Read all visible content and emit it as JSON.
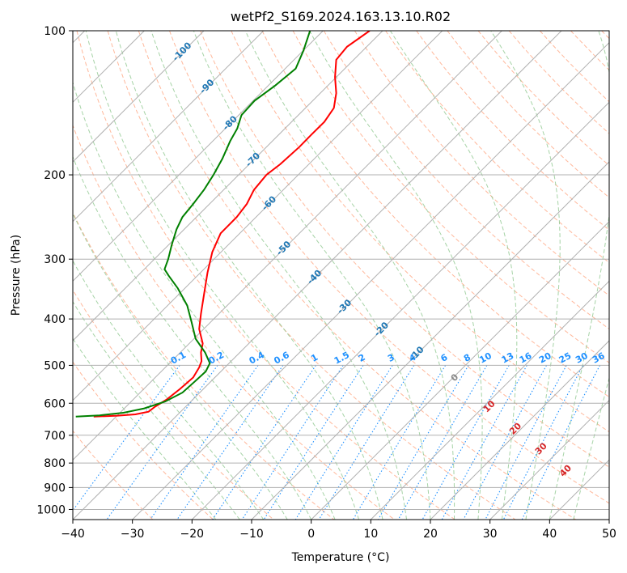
{
  "chart_data": {
    "type": "line",
    "title": "wetPf2_S169.2024.163.13.10.R02",
    "xlabel": "Temperature (°C)",
    "ylabel": "Pressure (hPa)",
    "xlim": [
      -40,
      50
    ],
    "ylim": [
      1050,
      100
    ],
    "y_scale": "log",
    "grid": true,
    "x_ticks": [
      -40,
      -30,
      -20,
      -10,
      0,
      10,
      20,
      30,
      40,
      50
    ],
    "y_ticks": [
      100,
      200,
      300,
      400,
      500,
      600,
      700,
      800,
      900,
      1000
    ],
    "skew": "temperature lines slanted 45°",
    "colors": {
      "temperature": "#ff0000",
      "dewpoint": "#008000",
      "isotherm_label": "#1f77b4",
      "mixing_ratio": "#1e90ff",
      "dry_adiabat": "#ffa07a",
      "moist_adiabat": "#90c890",
      "wet_bulb_label": "#d62728",
      "grid": "#b0b0b0"
    },
    "isotherm_labels": [
      -100,
      -90,
      -80,
      -70,
      -60,
      -50,
      -40,
      -30,
      -20,
      -10
    ],
    "mixing_ratio_labels": [
      "0.1",
      "0.2",
      "0.4",
      "0.6",
      "1",
      "1.5",
      "2",
      "3",
      "4",
      "6",
      "8",
      "10",
      "13",
      "16",
      "20",
      "25",
      "30",
      "36"
    ],
    "wet_bulb_labels": [
      "0",
      "10",
      "20",
      "30",
      "40"
    ],
    "series": [
      {
        "type": "temperature",
        "color": "#ff0000",
        "points": [
          {
            "t": 9.8,
            "p": 100
          },
          {
            "t": 6.0,
            "p": 108
          },
          {
            "t": 4.2,
            "p": 115
          },
          {
            "t": 4.0,
            "p": 125
          },
          {
            "t": 4.2,
            "p": 135
          },
          {
            "t": 3.8,
            "p": 145
          },
          {
            "t": 2.2,
            "p": 155
          },
          {
            "t": 0.0,
            "p": 165
          },
          {
            "t": -2.0,
            "p": 175
          },
          {
            "t": -5.2,
            "p": 190
          },
          {
            "t": -7.5,
            "p": 200
          },
          {
            "t": -9.6,
            "p": 215
          },
          {
            "t": -10.8,
            "p": 230
          },
          {
            "t": -12.5,
            "p": 245
          },
          {
            "t": -15.2,
            "p": 265
          },
          {
            "t": -16.6,
            "p": 290
          },
          {
            "t": -17.4,
            "p": 320
          },
          {
            "t": -17.9,
            "p": 350
          },
          {
            "t": -18.5,
            "p": 390
          },
          {
            "t": -18.8,
            "p": 420
          },
          {
            "t": -18.2,
            "p": 450
          },
          {
            "t": -18.5,
            "p": 470
          },
          {
            "t": -18.4,
            "p": 490
          },
          {
            "t": -18.8,
            "p": 505
          },
          {
            "t": -19.8,
            "p": 530
          },
          {
            "t": -22.0,
            "p": 560
          },
          {
            "t": -24.3,
            "p": 590
          },
          {
            "t": -26.2,
            "p": 610
          },
          {
            "t": -27.3,
            "p": 625
          },
          {
            "t": -29.5,
            "p": 633
          },
          {
            "t": -32.5,
            "p": 637
          },
          {
            "t": -36.5,
            "p": 640
          }
        ]
      },
      {
        "type": "dewpoint",
        "color": "#008000",
        "points": [
          {
            "t": -0.2,
            "p": 100
          },
          {
            "t": -1.3,
            "p": 110
          },
          {
            "t": -2.6,
            "p": 120
          },
          {
            "t": -6.0,
            "p": 130
          },
          {
            "t": -9.5,
            "p": 140
          },
          {
            "t": -11.7,
            "p": 150
          },
          {
            "t": -12.4,
            "p": 160
          },
          {
            "t": -13.6,
            "p": 170
          },
          {
            "t": -14.9,
            "p": 185
          },
          {
            "t": -16.4,
            "p": 200
          },
          {
            "t": -18.0,
            "p": 215
          },
          {
            "t": -19.8,
            "p": 230
          },
          {
            "t": -21.6,
            "p": 245
          },
          {
            "t": -22.6,
            "p": 260
          },
          {
            "t": -23.4,
            "p": 280
          },
          {
            "t": -24.0,
            "p": 300
          },
          {
            "t": -24.6,
            "p": 315
          },
          {
            "t": -23.9,
            "p": 325
          },
          {
            "t": -22.4,
            "p": 345
          },
          {
            "t": -20.8,
            "p": 375
          },
          {
            "t": -20.1,
            "p": 405
          },
          {
            "t": -19.4,
            "p": 440
          },
          {
            "t": -17.8,
            "p": 470
          },
          {
            "t": -17.0,
            "p": 495
          },
          {
            "t": -17.7,
            "p": 515
          },
          {
            "t": -19.5,
            "p": 540
          },
          {
            "t": -21.6,
            "p": 570
          },
          {
            "t": -24.5,
            "p": 595
          },
          {
            "t": -28.0,
            "p": 615
          },
          {
            "t": -31.5,
            "p": 628
          },
          {
            "t": -35.5,
            "p": 636
          },
          {
            "t": -39.5,
            "p": 640
          }
        ]
      }
    ]
  }
}
